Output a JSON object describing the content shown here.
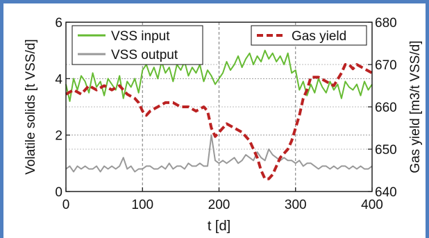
{
  "chart_data": {
    "type": "line",
    "xlabel": "t [d]",
    "ylabel": "Volatile solids [t VSS/d]",
    "y2label": "Gas yield [m3/t VSS/d]",
    "xlim": [
      0,
      400
    ],
    "ylim": [
      0,
      6
    ],
    "y2lim": [
      640,
      680
    ],
    "x_ticks": [
      "0",
      "100",
      "200",
      "300",
      "400"
    ],
    "y_ticks": [
      "0",
      "2",
      "4",
      "6"
    ],
    "y2_ticks": [
      "640",
      "650",
      "660",
      "670",
      "680"
    ],
    "grid": true,
    "legend_left": {
      "placement": "top-left",
      "entries": [
        {
          "label": "VSS input",
          "color": "#66bb33"
        },
        {
          "label": "VSS output",
          "color": "#999999"
        }
      ]
    },
    "legend_right": {
      "placement": "top-right",
      "entries": [
        {
          "label": "Gas yield",
          "color": "#bb2222"
        }
      ]
    },
    "series": [
      {
        "name": "VSS input",
        "axis": "left",
        "color": "#66bb33",
        "x": [
          0,
          5,
          10,
          15,
          20,
          25,
          30,
          35,
          40,
          45,
          50,
          55,
          60,
          65,
          70,
          75,
          80,
          85,
          90,
          95,
          100,
          105,
          110,
          115,
          120,
          125,
          130,
          135,
          140,
          145,
          150,
          155,
          160,
          165,
          170,
          175,
          180,
          185,
          190,
          195,
          200,
          205,
          210,
          215,
          220,
          225,
          230,
          235,
          240,
          245,
          250,
          255,
          260,
          265,
          270,
          275,
          280,
          285,
          290,
          295,
          300,
          305,
          310,
          315,
          320,
          325,
          330,
          335,
          340,
          345,
          350,
          355,
          360,
          365,
          370,
          375,
          380,
          385,
          390,
          395,
          400
        ],
        "y": [
          3.8,
          3.2,
          4.0,
          3.6,
          4.1,
          3.9,
          3.5,
          4.2,
          3.7,
          3.9,
          3.4,
          4.0,
          3.8,
          3.6,
          4.1,
          3.3,
          3.9,
          3.7,
          4.0,
          3.5,
          4.3,
          4.5,
          4.1,
          4.4,
          4.0,
          4.6,
          4.2,
          4.4,
          3.9,
          4.5,
          4.3,
          4.6,
          4.1,
          4.4,
          4.2,
          4.5,
          3.9,
          4.3,
          4.1,
          3.8,
          4.0,
          4.2,
          4.6,
          4.3,
          4.5,
          4.8,
          4.4,
          4.7,
          4.9,
          4.5,
          4.8,
          4.6,
          5.0,
          4.7,
          4.9,
          4.6,
          4.8,
          4.5,
          4.9,
          4.2,
          4.3,
          3.6,
          3.9,
          3.4,
          3.8,
          3.5,
          4.0,
          3.7,
          3.5,
          3.9,
          3.6,
          3.8,
          3.3,
          3.9,
          3.7,
          3.6,
          3.8,
          3.4,
          3.9,
          3.6,
          3.8
        ]
      },
      {
        "name": "VSS output",
        "axis": "left",
        "color": "#999999",
        "x": [
          0,
          5,
          10,
          15,
          20,
          25,
          30,
          35,
          40,
          45,
          50,
          55,
          60,
          65,
          70,
          75,
          80,
          85,
          90,
          95,
          100,
          105,
          110,
          115,
          120,
          125,
          130,
          135,
          140,
          145,
          150,
          155,
          160,
          165,
          170,
          175,
          180,
          185,
          190,
          195,
          200,
          205,
          210,
          215,
          220,
          225,
          230,
          235,
          240,
          245,
          250,
          255,
          260,
          265,
          270,
          275,
          280,
          285,
          290,
          295,
          300,
          305,
          310,
          315,
          320,
          325,
          330,
          335,
          340,
          345,
          350,
          355,
          360,
          365,
          370,
          375,
          380,
          385,
          390,
          395,
          400
        ],
        "y": [
          0.8,
          0.9,
          0.7,
          0.9,
          0.8,
          0.9,
          0.8,
          0.8,
          0.9,
          0.7,
          0.9,
          0.8,
          0.9,
          0.8,
          0.9,
          1.2,
          0.8,
          0.9,
          0.7,
          0.8,
          0.8,
          0.9,
          0.9,
          0.8,
          0.8,
          0.9,
          0.8,
          1.0,
          0.8,
          0.9,
          0.9,
          0.8,
          1.0,
          0.9,
          0.9,
          1.0,
          0.9,
          0.9,
          2.0,
          1.1,
          1.0,
          1.1,
          1.0,
          1.1,
          1.2,
          1.0,
          1.1,
          1.3,
          1.2,
          1.1,
          1.4,
          1.2,
          1.1,
          1.5,
          1.3,
          1.2,
          1.1,
          1.2,
          1.1,
          1.1,
          1.0,
          1.1,
          0.9,
          1.0,
          1.0,
          0.9,
          0.8,
          0.9,
          0.9,
          0.8,
          0.9,
          0.8,
          0.9,
          0.9,
          0.8,
          0.9,
          0.8,
          0.9,
          0.8,
          0.8,
          0.9
        ]
      },
      {
        "name": "Gas yield",
        "axis": "right",
        "color": "#bb2222",
        "x": [
          0,
          10,
          20,
          30,
          40,
          50,
          60,
          70,
          80,
          90,
          95,
          100,
          105,
          110,
          120,
          130,
          140,
          150,
          160,
          170,
          180,
          185,
          190,
          195,
          200,
          210,
          220,
          230,
          240,
          250,
          255,
          260,
          265,
          270,
          275,
          280,
          285,
          290,
          295,
          300,
          305,
          310,
          315,
          320,
          330,
          340,
          350,
          360,
          365,
          370,
          375,
          380,
          390,
          400
        ],
        "y": [
          663,
          664,
          663,
          665,
          664,
          665,
          664,
          665,
          663,
          662,
          661,
          659,
          658,
          659,
          660,
          661,
          661,
          660,
          660,
          659,
          660,
          659,
          655,
          653,
          654,
          656,
          655,
          654,
          652,
          648,
          645,
          643,
          643,
          644,
          646,
          648,
          649,
          650,
          652,
          655,
          658,
          662,
          664,
          667,
          667,
          666,
          665,
          668,
          670,
          670,
          669,
          670,
          669,
          668
        ]
      }
    ]
  }
}
